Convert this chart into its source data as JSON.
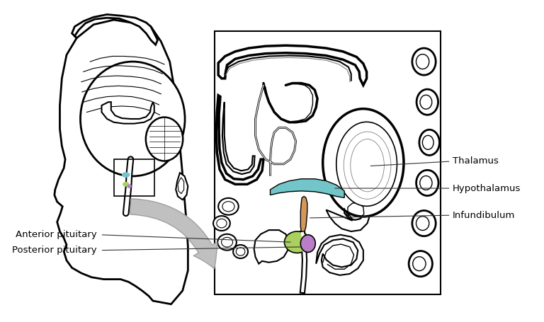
{
  "background_color": "#ffffff",
  "fig_width": 7.68,
  "fig_height": 4.55,
  "dpi": 100,
  "labels": {
    "thalamus": "Thalamus",
    "hypothalamus": "Hypothalamus",
    "infundibulum": "Infundibulum",
    "anterior_pituitary": "Anterior pituitary",
    "posterior_pituitary": "Posterior pituitary"
  },
  "colors": {
    "hypothalamus_fill": "#72c5c8",
    "anterior_pituitary_fill": "#aad15e",
    "posterior_pituitary_fill": "#b87fc8",
    "infundibulum_fill": "#d4975a",
    "outline": "#000000",
    "arrow_fill": "#c0c0c0",
    "arrow_edge": "#a0a0a0",
    "line_color": "#333333",
    "text_color": "#000000"
  }
}
